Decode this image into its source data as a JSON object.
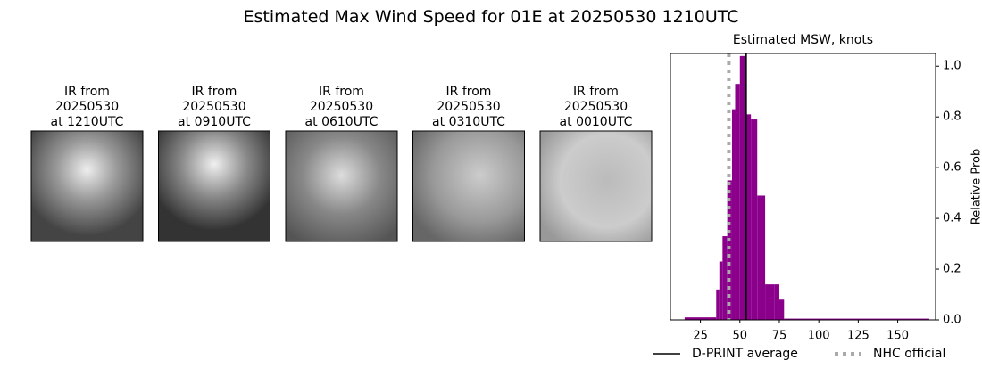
{
  "title": "Estimated Max Wind Speed for 01E at 20250530 1210UTC",
  "panels": [
    {
      "title": [
        "IR from",
        "20250530",
        "at 1210UTC"
      ]
    },
    {
      "title": [
        "IR from",
        "20250530",
        "at 0910UTC"
      ]
    },
    {
      "title": [
        "IR from",
        "20250530",
        "at 0610UTC"
      ]
    },
    {
      "title": [
        "IR from",
        "20250530",
        "at 0310UTC"
      ]
    },
    {
      "title": [
        "IR from",
        "20250530",
        "at 0010UTC"
      ]
    }
  ],
  "chart_data": {
    "type": "histogram",
    "title": "Estimated MSW, knots",
    "y_label": "Relative Prob",
    "bins": [
      15,
      35,
      37,
      39,
      42,
      45,
      47,
      50,
      54,
      57,
      61,
      66,
      69,
      72,
      75,
      78,
      170
    ],
    "counts": [
      0.01,
      0.12,
      0.23,
      0.33,
      0.55,
      0.83,
      0.93,
      1.04,
      0.81,
      0.79,
      0.49,
      0.14,
      0.14,
      0.14,
      0.08,
      0.005
    ],
    "color": "#8b008b",
    "xlim": [
      6,
      174
    ],
    "ylim": [
      0,
      1.05
    ],
    "xticks": [
      25,
      50,
      75,
      100,
      125,
      150
    ],
    "yticks": [
      {
        "value": 0,
        "label": "0.0"
      },
      {
        "value": 0.2,
        "label": "0.2"
      },
      {
        "value": 0.4,
        "label": "0.4"
      },
      {
        "value": 0.6,
        "label": "0.6"
      },
      {
        "value": 0.8,
        "label": "0.8"
      },
      {
        "value": 1,
        "label": "1.0"
      }
    ],
    "lines": [
      {
        "name": "D-PRINT average",
        "x": 54,
        "color": "#000000",
        "style": "solid"
      },
      {
        "name": "NHC official",
        "x": 43,
        "color": "#aaaaaa",
        "style": "dotted"
      }
    ]
  }
}
